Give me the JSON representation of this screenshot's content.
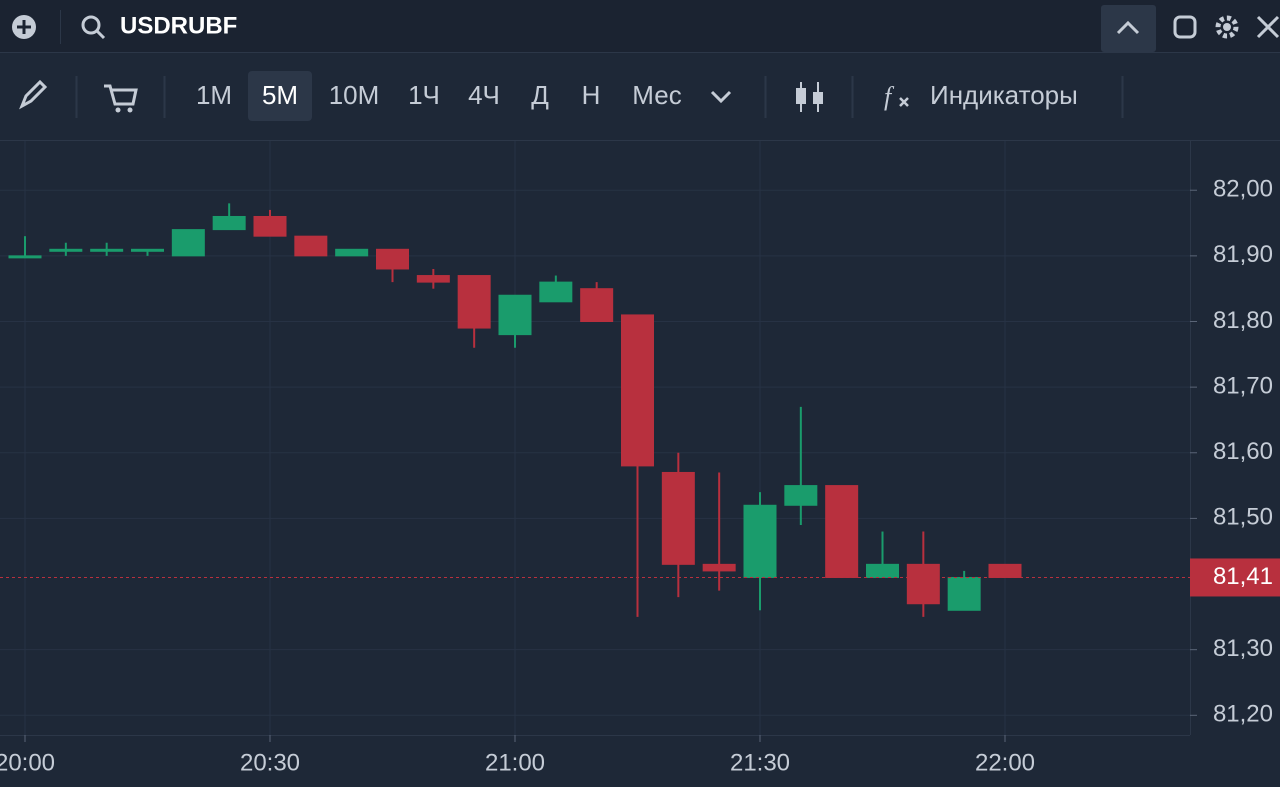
{
  "header": {
    "symbol": "USDRUBF"
  },
  "toolbar": {
    "timeframes": [
      "1М",
      "5М",
      "10М",
      "1Ч",
      "4Ч",
      "Д",
      "Н",
      "Мес"
    ],
    "active_timeframe": 1,
    "indicators": "Индикаторы"
  },
  "chart_data": {
    "type": "candlestick",
    "categories": [
      "20:00",
      null,
      null,
      null,
      null,
      null,
      "20:30",
      null,
      null,
      null,
      null,
      null,
      "21:00",
      null,
      null,
      null,
      null,
      null,
      "21:30",
      null,
      null,
      null,
      null,
      null,
      "22:00"
    ],
    "open": [
      81.9,
      81.91,
      81.91,
      81.91,
      81.9,
      81.94,
      81.96,
      81.93,
      81.9,
      81.91,
      81.87,
      81.87,
      81.78,
      81.83,
      81.85,
      81.81,
      81.57,
      81.43,
      81.41,
      81.52,
      81.55,
      81.41,
      81.43,
      81.36,
      81.43
    ],
    "high": [
      81.93,
      81.92,
      81.92,
      81.91,
      81.94,
      81.98,
      81.97,
      81.93,
      81.91,
      81.91,
      81.88,
      81.87,
      81.84,
      81.87,
      81.86,
      81.81,
      81.6,
      81.57,
      81.54,
      81.67,
      81.55,
      81.48,
      81.48,
      81.42,
      81.43
    ],
    "low": [
      81.9,
      81.9,
      81.9,
      81.9,
      81.9,
      81.94,
      81.93,
      81.9,
      81.9,
      81.86,
      81.85,
      81.76,
      81.76,
      81.83,
      81.8,
      81.35,
      81.38,
      81.39,
      81.36,
      81.49,
      81.41,
      81.41,
      81.35,
      81.36,
      81.41
    ],
    "close": [
      81.9,
      81.91,
      81.91,
      81.91,
      81.94,
      81.96,
      81.93,
      81.9,
      81.91,
      81.88,
      81.86,
      81.79,
      81.84,
      81.86,
      81.8,
      81.58,
      81.43,
      81.42,
      81.52,
      81.55,
      81.41,
      81.43,
      81.37,
      81.41,
      81.41
    ],
    "up_color": "#1a9c6c",
    "down_color": "#b8303e",
    "ylim": [
      81.17,
      82.075
    ],
    "yticks": [
      {
        "value": 82.0,
        "label": "82,00"
      },
      {
        "value": 81.9,
        "label": "81,90"
      },
      {
        "value": 81.8,
        "label": "81,80"
      },
      {
        "value": 81.7,
        "label": "81,70"
      },
      {
        "value": 81.6,
        "label": "81,60"
      },
      {
        "value": 81.5,
        "label": "81,50"
      },
      {
        "value": 81.3,
        "label": "81,30"
      },
      {
        "value": 81.2,
        "label": "81,20"
      }
    ],
    "last_price": {
      "value": 81.41,
      "label": "81,41"
    },
    "grid": true
  }
}
